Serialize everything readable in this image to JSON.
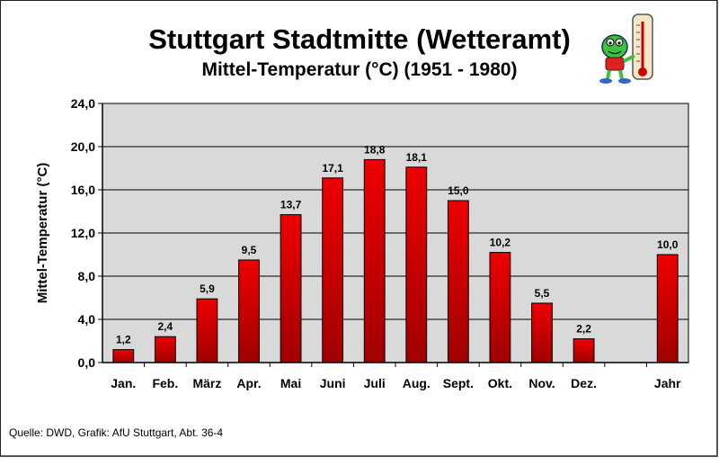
{
  "header": {
    "title": "Stuttgart Stadtmitte (Wetteramt)",
    "subtitle": "Mittel-Temperatur (°C) (1951 - 1980)"
  },
  "footer": {
    "source": "Quelle: DWD, Grafik: AfU Stuttgart, Abt. 36-4"
  },
  "colors": {
    "bar": "#ee0000",
    "bar_dark": "#a00000",
    "plot_background": "#d9d9d9",
    "grid": "#000000"
  },
  "chart_data": {
    "type": "bar",
    "title": "Stuttgart Stadtmitte (Wetteramt)",
    "subtitle": "Mittel-Temperatur (°C) (1951 - 1980)",
    "xlabel": "",
    "ylabel": "Mittel-Temperatur (°C)",
    "ylim": [
      0,
      24
    ],
    "yticks": [
      "0,0",
      "4,0",
      "8,0",
      "12,0",
      "16,0",
      "20,0",
      "24,0"
    ],
    "ytick_values": [
      0,
      4,
      8,
      12,
      16,
      20,
      24
    ],
    "grid": true,
    "legend": "none",
    "categories": [
      "Jan.",
      "Feb.",
      "März",
      "Apr.",
      "Mai",
      "Juni",
      "Juli",
      "Aug.",
      "Sept.",
      "Okt.",
      "Nov.",
      "Dez.",
      "",
      "Jahr"
    ],
    "values": [
      1.2,
      2.4,
      5.9,
      9.5,
      13.7,
      17.1,
      18.8,
      18.1,
      15.0,
      10.2,
      5.5,
      2.2,
      null,
      10.0
    ],
    "data_labels": [
      "1,2",
      "2,4",
      "5,9",
      "9,5",
      "13,7",
      "17,1",
      "18,8",
      "18,1",
      "15,0",
      "10,2",
      "5,5",
      "2,2",
      "",
      "10,0"
    ]
  }
}
